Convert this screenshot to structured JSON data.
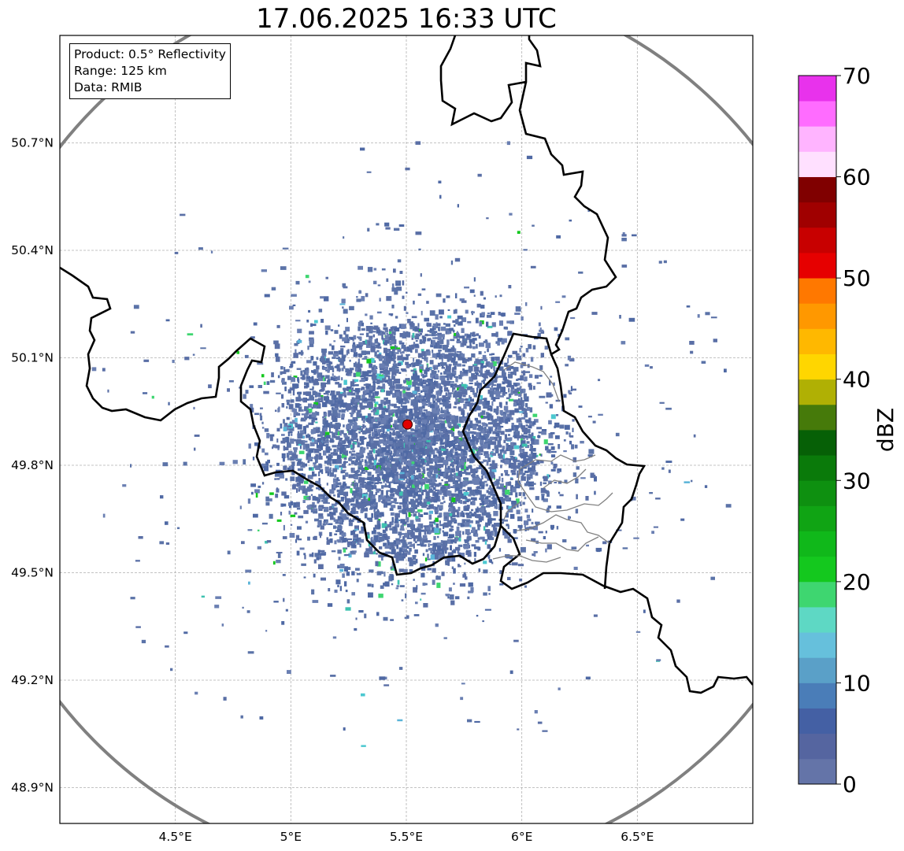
{
  "title": "17.06.2025 16:33 UTC",
  "info_box": {
    "product": "Product: 0.5° Reflectivity",
    "range": "Range: 125 km",
    "data_source": "Data: RMIB"
  },
  "map": {
    "lon_range": [
      4.0,
      7.0
    ],
    "lat_range": [
      48.8,
      51.0
    ],
    "lon_ticks": [
      {
        "value": 4.5,
        "label": "4.5°E"
      },
      {
        "value": 5.0,
        "label": "5°E"
      },
      {
        "value": 5.5,
        "label": "5.5°E"
      },
      {
        "value": 6.0,
        "label": "6°E"
      },
      {
        "value": 6.5,
        "label": "6.5°E"
      }
    ],
    "lat_ticks": [
      {
        "value": 48.9,
        "label": "48.9°N"
      },
      {
        "value": 49.2,
        "label": "49.2°N"
      },
      {
        "value": 49.5,
        "label": "49.5°N"
      },
      {
        "value": 49.8,
        "label": "49.8°N"
      },
      {
        "value": 50.1,
        "label": "50.1°N"
      },
      {
        "value": 50.4,
        "label": "50.4°N"
      },
      {
        "value": 50.7,
        "label": "50.7°N"
      }
    ],
    "radar_site": {
      "lon": 5.505,
      "lat": 49.914,
      "color": "#e00000"
    },
    "range_ring_color": "#808080",
    "border_color": "#000000",
    "admin_border_color": "#808080",
    "echo_main_color": "#5b73a8"
  },
  "colorbar": {
    "unit": "dBZ",
    "min": 0,
    "max": 70,
    "step": 2.5,
    "colors": [
      "#6474a8",
      "#5565a0",
      "#4460a4",
      "#4a7db8",
      "#5aa0c8",
      "#66c0dc",
      "#5ed8c4",
      "#3ed670",
      "#14c81e",
      "#10b81a",
      "#10a414",
      "#0e9010",
      "#0a7a0a",
      "#066006",
      "#467a0a",
      "#b0b004",
      "#ffd600",
      "#ffb800",
      "#ff9800",
      "#ff7800",
      "#e60000",
      "#c80000",
      "#a00000",
      "#800000",
      "#ffe0ff",
      "#ffb4ff",
      "#ff6cff",
      "#e832ec"
    ],
    "ticks": [
      {
        "value": 0,
        "label": "0"
      },
      {
        "value": 10,
        "label": "10"
      },
      {
        "value": 20,
        "label": "20"
      },
      {
        "value": 30,
        "label": "30"
      },
      {
        "value": 40,
        "label": "40"
      },
      {
        "value": 50,
        "label": "50"
      },
      {
        "value": 60,
        "label": "60"
      },
      {
        "value": 70,
        "label": "70"
      }
    ]
  }
}
